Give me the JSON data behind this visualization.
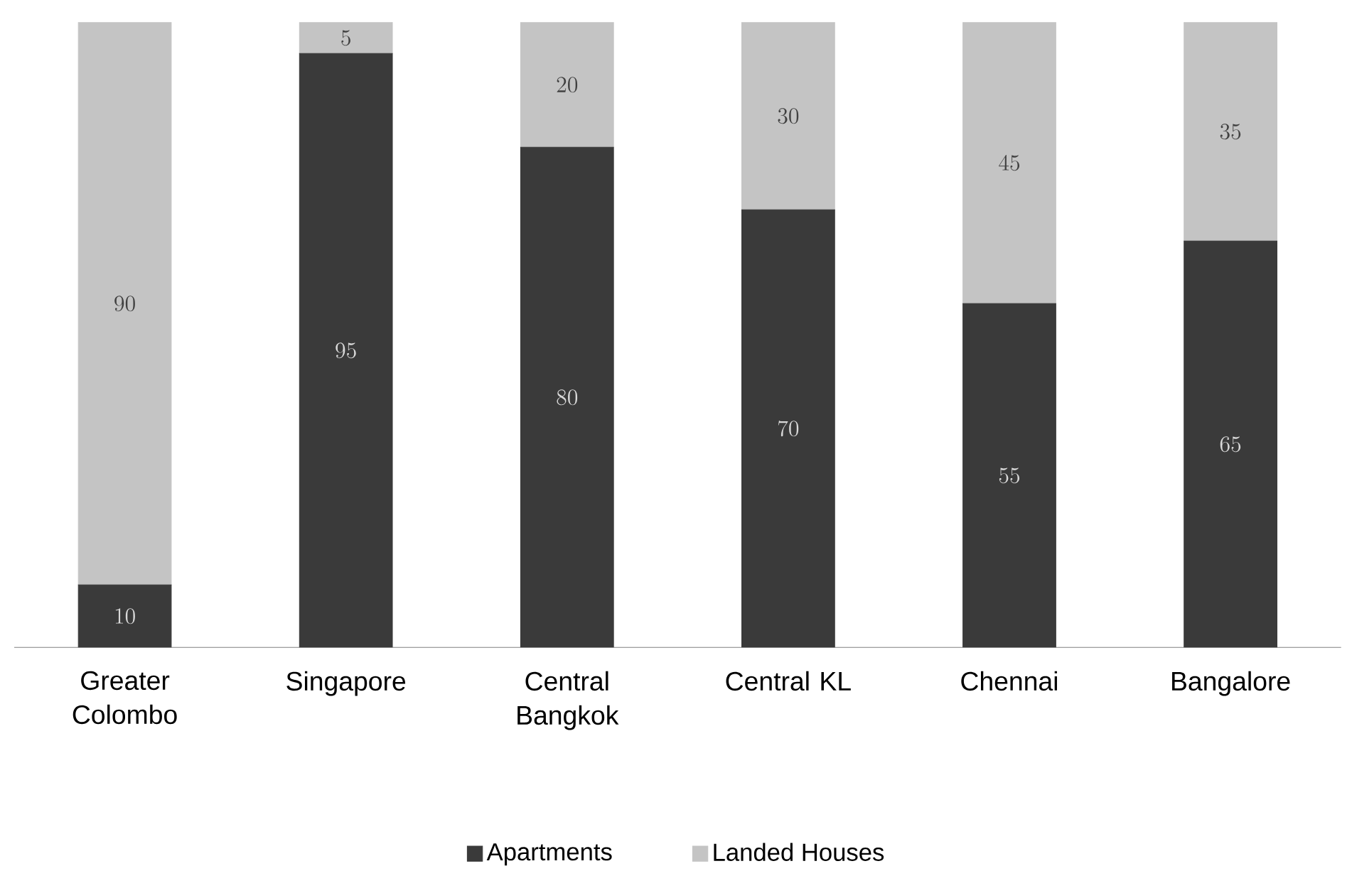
{
  "chart_data": {
    "type": "bar",
    "stacked": true,
    "categories": [
      "Greater Colombo",
      "Singapore",
      "Central Bangkok",
      "Central KL",
      "Chennai",
      "Bangalore"
    ],
    "series": [
      {
        "name": "Apartments",
        "color": "#3a3a3a",
        "values": [
          10,
          95,
          80,
          70,
          55,
          65
        ]
      },
      {
        "name": "Landed Houses",
        "color": "#c4c4c4",
        "values": [
          90,
          5,
          20,
          30,
          45,
          35
        ]
      }
    ],
    "data_labels": true,
    "tick_labels": "x",
    "legend": "bottom"
  }
}
